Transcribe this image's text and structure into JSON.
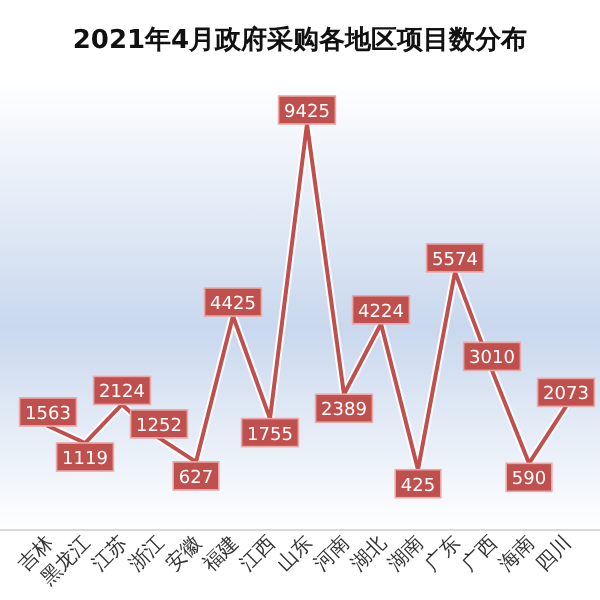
{
  "chart_data": {
    "type": "line",
    "title": "2021年4月政府采购各地区项目数分布",
    "categories": [
      "吉林",
      "黑龙江",
      "江苏",
      "浙江",
      "安徽",
      "福建",
      "江西",
      "山东",
      "河南",
      "湖北",
      "湖南",
      "广东",
      "广西",
      "海南",
      "四川"
    ],
    "values": [
      1563,
      1119,
      2124,
      1252,
      627,
      4425,
      1755,
      9425,
      2389,
      4224,
      425,
      5574,
      3010,
      590,
      2073
    ],
    "color": "#c0504d",
    "data_labels": true
  }
}
